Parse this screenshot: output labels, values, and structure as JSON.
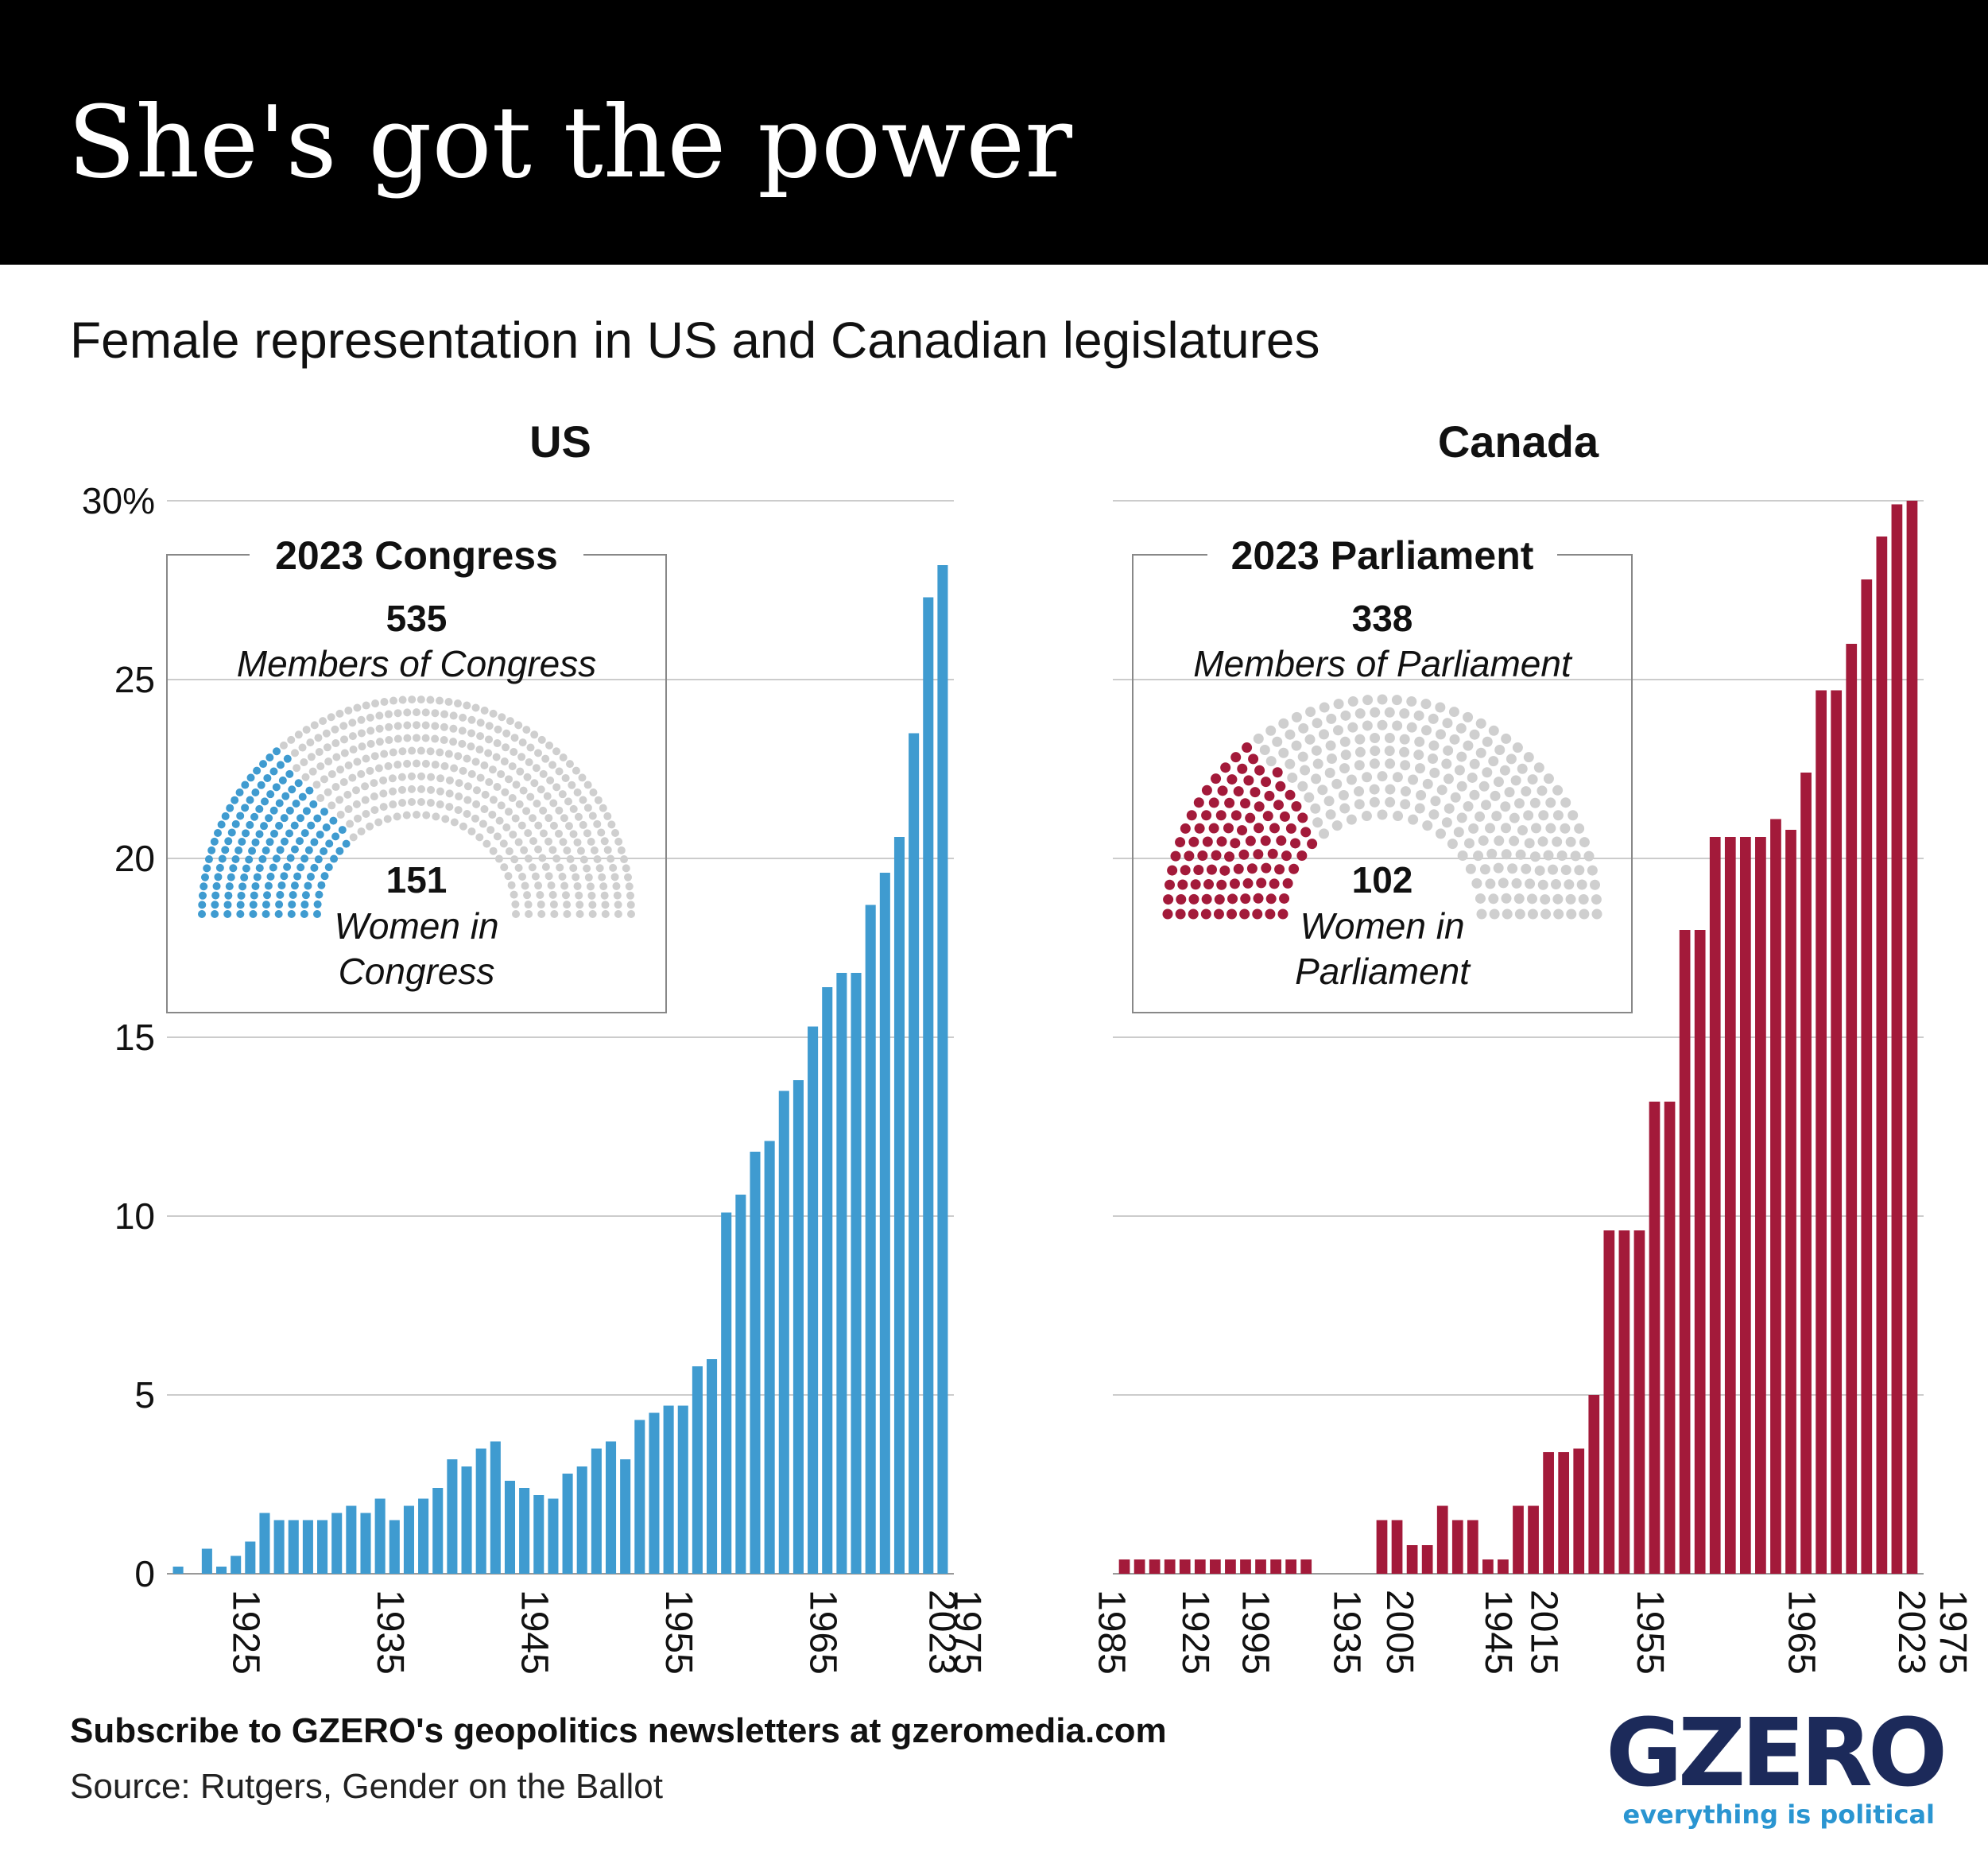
{
  "title": "She's got the power",
  "subtitle": "Female representation in US and Canadian legislatures",
  "footer": {
    "subscribe": "Subscribe to GZERO's geopolitics newsletters at gzeromedia.com",
    "source": "Source: Rutgers, Gender on the Ballot"
  },
  "logo": {
    "word": "GZERO",
    "tagline": "everything is political"
  },
  "colors": {
    "us": "#3f9bd0",
    "canada": "#a31a3a",
    "seat_empty": "#cfcfcf",
    "grid": "#cccccc",
    "header": "#000000",
    "logo_dark": "#1c2a5a",
    "logo_blue": "#2a95d1"
  },
  "y_axis": {
    "ticks": [
      "30%",
      "25",
      "20",
      "15",
      "10",
      "5",
      "0"
    ]
  },
  "chart_data": [
    {
      "type": "bar",
      "title": "US",
      "ylim": [
        0,
        30
      ],
      "x_tick_labels": [
        "1925",
        "1935",
        "1945",
        "1955",
        "1965",
        "1975",
        "1985",
        "1995",
        "2005",
        "2015",
        "2023"
      ],
      "series": [
        {
          "values": [
            0.2,
            0,
            0.7,
            0.2,
            0.5,
            0.9,
            1.7,
            1.5,
            1.5,
            1.5,
            1.5,
            1.7,
            1.9,
            1.7,
            2.1,
            1.5,
            1.9,
            2.1,
            2.4,
            3.2,
            3.0,
            3.5,
            3.7,
            2.6,
            2.4,
            2.2,
            2.1,
            2.8,
            3.0,
            3.5,
            3.7,
            3.2,
            4.3,
            4.5,
            4.7,
            4.7,
            5.8,
            6.0,
            10.1,
            10.6,
            11.8,
            12.1,
            13.5,
            13.8,
            15.3,
            16.4,
            16.8,
            16.8,
            18.7,
            19.6,
            20.6,
            23.5,
            27.3,
            28.2
          ]
        }
      ],
      "inset": {
        "title": "2023 Congress",
        "total": "535",
        "total_label": "Members of Congress",
        "women": "151",
        "women_label_line1": "Women in",
        "women_label_line2": "Congress",
        "total_seats": 535,
        "women_seats": 151
      }
    },
    {
      "type": "bar",
      "title": "Canada",
      "ylim": [
        0,
        30
      ],
      "x_tick_labels": [
        "1925",
        "1935",
        "1945",
        "1955",
        "1965",
        "1975",
        "1985",
        "1995",
        "2005",
        "2015",
        "2023"
      ],
      "series": [
        {
          "values": [
            0.4,
            0.4,
            0.4,
            0.4,
            0.4,
            0.4,
            0.4,
            0.4,
            0.4,
            0.4,
            0.4,
            0.4,
            0.4,
            0,
            0,
            0,
            0,
            1.5,
            1.5,
            0.8,
            0.8,
            1.9,
            1.5,
            1.5,
            0.4,
            0.4,
            1.9,
            1.9,
            3.4,
            3.4,
            3.5,
            5.0,
            9.6,
            9.6,
            9.6,
            13.2,
            13.2,
            18.0,
            18.0,
            20.6,
            20.6,
            20.6,
            20.6,
            21.1,
            20.8,
            22.4,
            24.7,
            24.7,
            26.0,
            27.8,
            29.0,
            29.9,
            30.0
          ]
        }
      ],
      "inset": {
        "title": "2023 Parliament",
        "total": "338",
        "total_label": "Members of Parliament",
        "women": "102",
        "women_label_line1": "Women in",
        "women_label_line2": "Parliament",
        "total_seats": 338,
        "women_seats": 102
      }
    }
  ]
}
